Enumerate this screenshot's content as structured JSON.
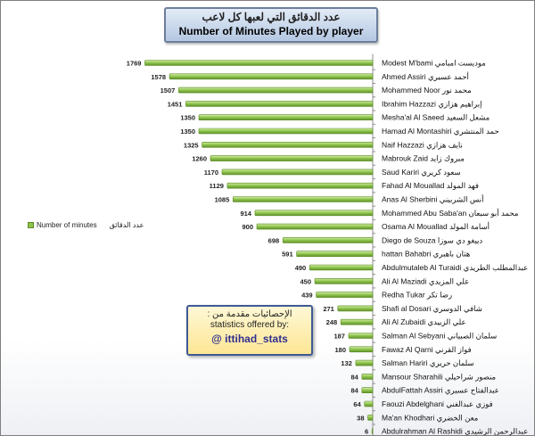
{
  "title": {
    "arabic": "عدد الدقائق التي لعبها كل لاعب",
    "english": "Number of Minutes Played by player"
  },
  "legend": {
    "label_en": "Number of minutes",
    "label_ar": "عدد الدقائق"
  },
  "stats_box": {
    "arabic": "الإحصائيات مقدمة من :",
    "english": "statistics offered by:",
    "handle": "@ ittihad_stats"
  },
  "colors": {
    "bar_fill": "#8fc34c",
    "bar_edge": "#5b8a24",
    "bar_highlight": "#c9e79a"
  },
  "chart_data": {
    "type": "bar",
    "orientation": "horizontal",
    "x_direction": "reversed",
    "xlim": [
      0,
      1800
    ],
    "xticks": [
      0,
      200,
      400,
      600,
      800,
      1000,
      1200,
      1400,
      1600,
      1800
    ],
    "grid": false,
    "series": [
      {
        "name": "Number of minutes",
        "values": [
          1769,
          1578,
          1507,
          1451,
          1350,
          1350,
          1325,
          1260,
          1170,
          1129,
          1085,
          914,
          900,
          698,
          591,
          490,
          450,
          439,
          271,
          248,
          187,
          180,
          132,
          84,
          84,
          64,
          38,
          6
        ]
      }
    ],
    "categories": [
      "Modest M'bami موديست امبامي",
      "Ahmed Assiri أحمد عسيري",
      "Mohammed Noor محمد نور",
      "Ibrahim Hazzazi إبراهيم هزازي",
      "Mesha'al Al Saeed مشعل السعيد",
      "Hamad Al Montashiri حمد المنتشري",
      "Naif Hazzazi نايف هزازي",
      "Mabrouk Zaid مبروك زايد",
      "Saud Kariri سعود كريري",
      "Fahad Al Mouallad فهد المولد",
      "Anas Al Sherbini أنس الشربيني",
      "Mohammed Abu Saba'an محمد أبو سبعان",
      "Osama Al Mouallad أسامة المولد",
      "Diego de Souza دييغو دي سوزا",
      "hattan Bahabri هتان باهبري",
      "Abdulmutaleb Al Turaidi عبدالمطلب الطريدي",
      "Ali Al Maziadi علي المزيدي",
      "Redha Tukar رضا تكر",
      "Shafi al Dosari شافي الدوسري",
      "Ali Al Zubaidi علي الزبيدي",
      "Salman Al Sebyani سلمان الصبياني",
      "Fawaz Al Qarni فواز القرني",
      "Salman Hariri سلمان حريري",
      "Mansour Sharahili منصور شراحيلي",
      "AbdulFattah Assiri عبدالفتاح عسيري",
      "Faouzi Abdelghani فوزي عبدالغني",
      "Ma'an Khodhari معن الخضري",
      "Abdulrahman Al Rashidi عبدالرحمن الرشيدي"
    ]
  }
}
